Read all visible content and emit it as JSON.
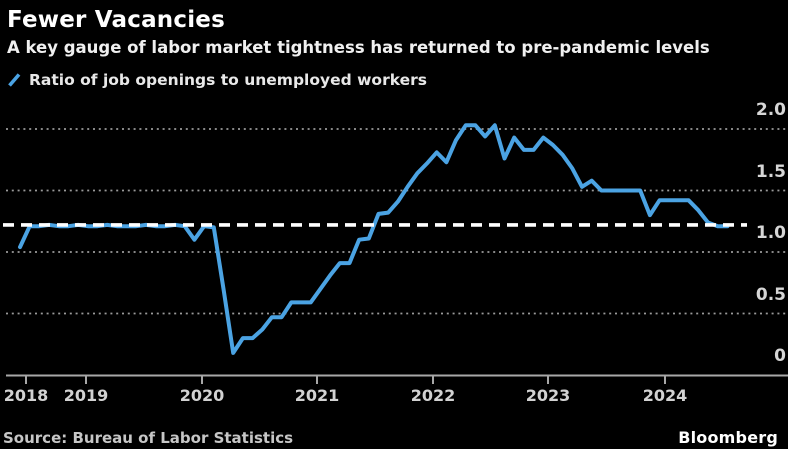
{
  "header": {
    "title": "Fewer Vacancies",
    "subtitle": "A key gauge of labor market tightness has returned to pre-pandemic levels"
  },
  "legend": {
    "label": "Ratio of job openings to unemployed workers"
  },
  "chart_data": {
    "type": "line",
    "title": "Fewer Vacancies",
    "series_name": "Ratio of job openings to unemployed workers",
    "frequency": "monthly",
    "x": [
      "2018-06",
      "2018-07",
      "2018-08",
      "2018-09",
      "2018-10",
      "2018-11",
      "2018-12",
      "2019-01",
      "2019-02",
      "2019-03",
      "2019-04",
      "2019-05",
      "2019-06",
      "2019-07",
      "2019-08",
      "2019-09",
      "2019-10",
      "2019-11",
      "2019-12",
      "2020-01",
      "2020-02",
      "2020-03",
      "2020-04",
      "2020-05",
      "2020-06",
      "2020-07",
      "2020-08",
      "2020-09",
      "2020-10",
      "2020-11",
      "2020-12",
      "2021-01",
      "2021-02",
      "2021-03",
      "2021-04",
      "2021-05",
      "2021-06",
      "2021-07",
      "2021-08",
      "2021-09",
      "2021-10",
      "2021-11",
      "2021-12",
      "2022-01",
      "2022-02",
      "2022-03",
      "2022-04",
      "2022-05",
      "2022-06",
      "2022-07",
      "2022-08",
      "2022-09",
      "2022-10",
      "2022-11",
      "2022-12",
      "2023-01",
      "2023-02",
      "2023-03",
      "2023-04",
      "2023-05",
      "2023-06",
      "2023-07",
      "2023-08",
      "2023-09",
      "2023-10",
      "2023-11",
      "2023-12",
      "2024-01",
      "2024-02",
      "2024-03",
      "2024-04",
      "2024-05",
      "2024-06",
      "2024-07"
    ],
    "values": [
      1.04,
      1.21,
      1.21,
      1.22,
      1.21,
      1.21,
      1.22,
      1.21,
      1.21,
      1.22,
      1.21,
      1.21,
      1.21,
      1.22,
      1.21,
      1.21,
      1.22,
      1.21,
      1.1,
      1.21,
      1.2,
      0.7,
      0.18,
      0.3,
      0.3,
      0.37,
      0.47,
      0.47,
      0.59,
      0.59,
      0.59,
      0.7,
      0.81,
      0.91,
      0.91,
      1.1,
      1.11,
      1.31,
      1.32,
      1.41,
      1.53,
      1.64,
      1.72,
      1.81,
      1.73,
      1.91,
      2.03,
      2.03,
      1.94,
      2.03,
      1.76,
      1.93,
      1.83,
      1.83,
      1.93,
      1.87,
      1.79,
      1.68,
      1.53,
      1.58,
      1.5,
      1.5,
      1.5,
      1.5,
      1.5,
      1.3,
      1.42,
      1.42,
      1.42,
      1.42,
      1.34,
      1.24,
      1.21,
      1.21
    ],
    "y_ticks": [
      "2.0",
      "1.5",
      "1.0",
      "0.5",
      "0"
    ],
    "y_tick_values": [
      2.0,
      1.5,
      1.0,
      0.5,
      0
    ],
    "x_tick_labels": [
      "2018",
      "2019",
      "2020",
      "2021",
      "2022",
      "2023",
      "2024"
    ],
    "ylim": [
      0,
      2.1
    ],
    "grid": "dotted-horizontal",
    "legend_position": "top-left",
    "reference_line": {
      "value": 1.22,
      "style": "dashed",
      "color": "#FFFFFF",
      "meaning": "pre-pandemic level"
    }
  },
  "footer": {
    "source": "Source: Bureau of Labor Statistics",
    "brand": "Bloomberg"
  },
  "colors": {
    "background": "#000000",
    "line": "#4BA3E3",
    "reference_line": "#FFFFFF",
    "grid": "#9A9A9A",
    "axis": "#A8A8A8",
    "title_text": "#FFFFFF",
    "label_text": "#D6D6D6"
  }
}
